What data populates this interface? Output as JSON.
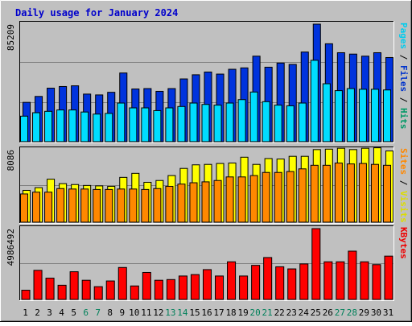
{
  "chart_data": {
    "type": "bar",
    "title": "Daily usage for January 2024",
    "categories": [
      "1",
      "2",
      "3",
      "4",
      "5",
      "6",
      "7",
      "8",
      "9",
      "10",
      "11",
      "12",
      "13",
      "14",
      "15",
      "16",
      "17",
      "18",
      "19",
      "20",
      "21",
      "22",
      "23",
      "24",
      "25",
      "26",
      "27",
      "28",
      "29",
      "30",
      "31"
    ],
    "weekend_days": [
      6,
      7,
      13,
      14,
      20,
      21,
      27,
      28
    ],
    "panels": [
      {
        "name": "hits-files-pages",
        "ymax_label": "85209",
        "ymax": 85209,
        "right_label_parts": [
          {
            "text": "Pages",
            "color": "#00ccee"
          },
          {
            "text": " / ",
            "color": "#000000"
          },
          {
            "text": "Files",
            "color": "#0033cc"
          },
          {
            "text": " / ",
            "color": "#000000"
          },
          {
            "text": "Hits",
            "color": "#009966"
          }
        ],
        "series": [
          {
            "name": "Hits",
            "color": "#0033dd",
            "values": [
              28500,
              32800,
              38800,
              40000,
              40500,
              34500,
              33900,
              35800,
              49800,
              38200,
              38500,
              36500,
              38500,
              45500,
              48500,
              50500,
              49000,
              52500,
              53500,
              62000,
              54000,
              57000,
              56000,
              65000,
              85209,
              71000,
              64500,
              63500,
              62000,
              64500,
              61000
            ]
          },
          {
            "name": "Files",
            "color": "#00ddff",
            "values": [
              18500,
              21000,
              22000,
              23000,
              23000,
              21500,
              20000,
              20500,
              28000,
              24500,
              24500,
              22500,
              24500,
              25500,
              28000,
              27000,
              26500,
              28000,
              30500,
              36000,
              29000,
              26500,
              26000,
              28000,
              59000,
              42000,
              37000,
              38500,
              38000,
              38000,
              37500
            ]
          },
          {
            "name": "Pages",
            "color": "#00ccee",
            "values": []
          }
        ]
      },
      {
        "name": "visits-sites",
        "ymax_label": "8086",
        "ymax": 8086,
        "right_label_parts": [
          {
            "text": "Sites",
            "color": "#ff8800"
          },
          {
            "text": " / ",
            "color": "#000000"
          },
          {
            "text": "Visits",
            "color": "#dddd00"
          }
        ],
        "series": [
          {
            "name": "Visits",
            "color": "#ffff00",
            "values": [
              3550,
              3850,
              4800,
              4300,
              4200,
              4100,
              4050,
              4000,
              5000,
              5450,
              4450,
              4650,
              5200,
              6000,
              6400,
              6450,
              6550,
              6600,
              7250,
              6450,
              7100,
              7050,
              7350,
              7350,
              8100,
              8150,
              8250,
              8100,
              8250,
              8300,
              7950
            ]
          },
          {
            "name": "Sites",
            "color": "#ff8800",
            "values": [
              3150,
              3350,
              3350,
              3750,
              3700,
              3700,
              3650,
              3650,
              3700,
              3700,
              3650,
              3750,
              4000,
              4250,
              4400,
              4500,
              4650,
              5050,
              5050,
              5200,
              5550,
              5550,
              5650,
              5950,
              6350,
              6350,
              6600,
              6500,
              6550,
              6450,
              6350
            ]
          }
        ]
      },
      {
        "name": "kbytes",
        "ymax_label": "4986492",
        "ymax": 4986492,
        "right_label_parts": [
          {
            "text": "KBytes",
            "color": "#ee0000"
          }
        ],
        "series": [
          {
            "name": "KBytes",
            "color": "#ff0000",
            "values": [
              650000,
              2050000,
              1500000,
              1000000,
              1950000,
              1350000,
              900000,
              1300000,
              2250000,
              950000,
              1900000,
              1350000,
              1400000,
              1650000,
              1750000,
              2100000,
              1650000,
              2650000,
              1650000,
              2400000,
              2950000,
              2300000,
              2150000,
              2500000,
              4986492,
              2650000,
              2650000,
              3400000,
              2650000,
              2450000,
              3050000
            ]
          }
        ]
      }
    ]
  }
}
